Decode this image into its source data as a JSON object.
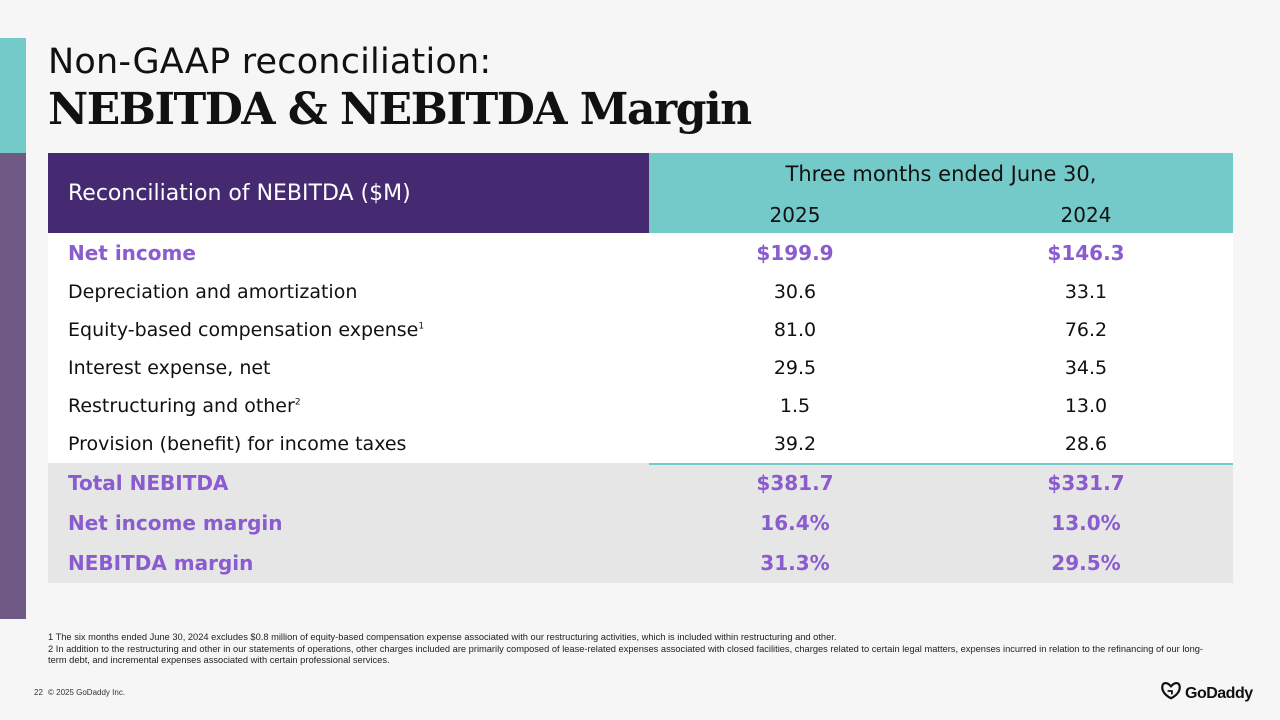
{
  "title": {
    "line1": "Non-GAAP reconciliation:",
    "line2": "NEBITDA & NEBITDA Margin"
  },
  "table": {
    "header_label": "Reconciliation of NEBITDA ($M)",
    "period": "Three months ended June 30,",
    "years": [
      "2025",
      "2024"
    ],
    "rows": [
      {
        "label": "Net income",
        "sup": "",
        "v2025": "$199.9",
        "v2024": "$146.3"
      },
      {
        "label": "Depreciation and amortization",
        "sup": "",
        "v2025": "30.6",
        "v2024": "33.1"
      },
      {
        "label": "Equity-based compensation expense",
        "sup": "1",
        "v2025": "81.0",
        "v2024": "76.2"
      },
      {
        "label": "Interest expense, net",
        "sup": "",
        "v2025": "29.5",
        "v2024": "34.5"
      },
      {
        "label": "Restructuring and other",
        "sup": "2",
        "v2025": "1.5",
        "v2024": "13.0"
      },
      {
        "label": "Provision (benefit) for income taxes",
        "sup": "",
        "v2025": "39.2",
        "v2024": "28.6"
      }
    ],
    "summary": [
      {
        "label": "Total NEBITDA",
        "v2025": "$381.7",
        "v2024": "$331.7"
      },
      {
        "label": "Net income margin",
        "v2025": "16.4%",
        "v2024": "13.0%"
      },
      {
        "label": "NEBITDA margin",
        "v2025": "31.3%",
        "v2024": "29.5%"
      }
    ]
  },
  "footnotes": [
    "1 The six months ended June 30, 2024 excludes $0.8 million of equity-based compensation expense associated with our restructuring activities, which is included within restructuring and other.",
    "2 In addition to the restructuring and other in our statements of operations, other charges included are primarily composed of lease-related expenses associated with closed facilities, charges related to certain legal matters, expenses incurred in relation to the refinancing of our long-term debt, and incremental expenses associated with certain professional services."
  ],
  "footer": {
    "page_number": "22",
    "copyright": "© 2025 GoDaddy Inc.",
    "logo_text": "GoDaddy",
    "logo_icon": "godaddy-logo-icon"
  },
  "colors": {
    "teal": "#74c9c9",
    "deep_purple": "#452a72",
    "muted_purple": "#6f5a85",
    "highlight_purple": "#8a5ccf",
    "summary_grey": "#e6e6e6"
  }
}
